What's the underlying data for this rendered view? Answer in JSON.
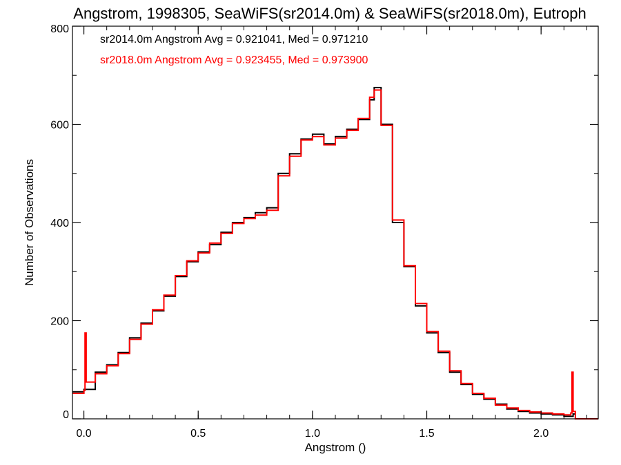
{
  "chart_data": {
    "type": "line",
    "step": true,
    "title": "Angstrom, 1998305, SeaWiFS(sr2014.0m) & SeaWiFS(sr2018.0m), Eutroph",
    "xlabel": "Angstrom ()",
    "ylabel": "Number of Observations",
    "xlim": [
      -0.05,
      2.25
    ],
    "ylim": [
      0,
      800
    ],
    "x_ticks": [
      0.0,
      0.5,
      1.0,
      1.5,
      2.0
    ],
    "x_tick_labels": [
      "0.0",
      "0.5",
      "1.0",
      "1.5",
      "2.0"
    ],
    "y_ticks": [
      0,
      200,
      400,
      600,
      800
    ],
    "y_tick_labels": [
      "0",
      "200",
      "400",
      "600",
      "800"
    ],
    "grid": false,
    "legend_position": "top-left",
    "series": [
      {
        "name": "sr2014.0m",
        "color": "#000000",
        "stats_text": "sr2014.0m Angstrom Avg = 0.921041, Med = 0.971210",
        "x": [
          -0.05,
          0.0,
          0.05,
          0.1,
          0.15,
          0.2,
          0.25,
          0.3,
          0.35,
          0.4,
          0.45,
          0.5,
          0.55,
          0.6,
          0.65,
          0.7,
          0.75,
          0.8,
          0.85,
          0.9,
          0.95,
          1.0,
          1.05,
          1.1,
          1.15,
          1.2,
          1.25,
          1.27,
          1.3,
          1.35,
          1.4,
          1.45,
          1.5,
          1.55,
          1.6,
          1.65,
          1.7,
          1.75,
          1.8,
          1.85,
          1.9,
          1.95,
          2.0,
          2.05,
          2.1,
          2.14,
          2.15,
          2.17,
          2.25
        ],
        "y": [
          55,
          60,
          95,
          110,
          135,
          165,
          195,
          220,
          250,
          290,
          320,
          340,
          355,
          380,
          400,
          410,
          420,
          430,
          500,
          540,
          570,
          580,
          560,
          575,
          590,
          610,
          650,
          675,
          600,
          400,
          310,
          230,
          175,
          135,
          95,
          70,
          50,
          40,
          30,
          20,
          15,
          12,
          10,
          8,
          5,
          10,
          0,
          0,
          0
        ]
      },
      {
        "name": "sr2018.0m",
        "color": "#ff0000",
        "stats_text": "sr2018.0m Angstrom Avg = 0.923455, Med = 0.973900",
        "x": [
          -0.05,
          0.0,
          0.005,
          0.01,
          0.05,
          0.1,
          0.15,
          0.2,
          0.25,
          0.3,
          0.35,
          0.4,
          0.45,
          0.5,
          0.55,
          0.6,
          0.65,
          0.7,
          0.75,
          0.8,
          0.85,
          0.9,
          0.95,
          1.0,
          1.05,
          1.1,
          1.15,
          1.2,
          1.25,
          1.27,
          1.3,
          1.35,
          1.4,
          1.45,
          1.5,
          1.55,
          1.6,
          1.65,
          1.7,
          1.75,
          1.8,
          1.85,
          1.9,
          1.95,
          2.0,
          2.05,
          2.1,
          2.13,
          2.135,
          2.14,
          2.15,
          2.17,
          2.25
        ],
        "y": [
          52,
          58,
          175,
          75,
          92,
          108,
          133,
          162,
          193,
          222,
          252,
          292,
          322,
          338,
          358,
          378,
          398,
          408,
          415,
          425,
          495,
          535,
          568,
          575,
          558,
          572,
          588,
          612,
          655,
          670,
          598,
          405,
          312,
          235,
          178,
          138,
          98,
          72,
          52,
          42,
          28,
          22,
          17,
          14,
          12,
          10,
          8,
          12,
          95,
          15,
          0,
          0,
          0
        ]
      }
    ]
  }
}
